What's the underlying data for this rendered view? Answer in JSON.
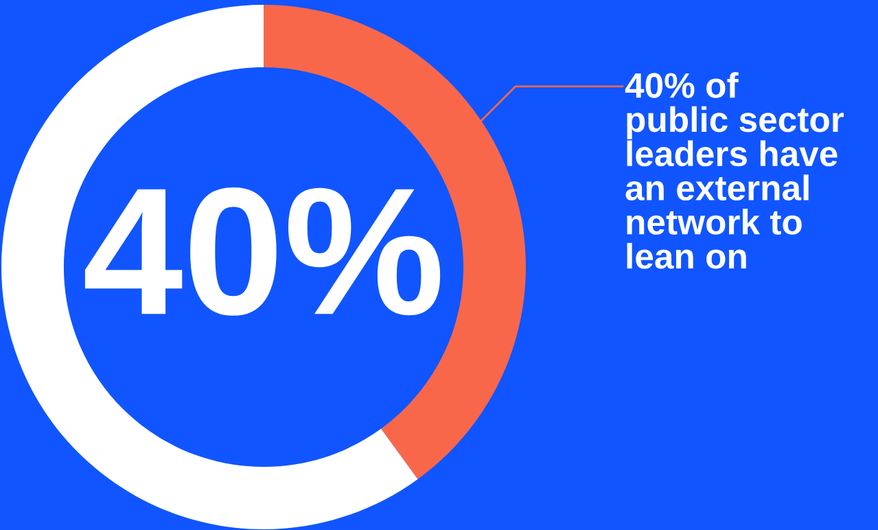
{
  "chart_data": {
    "type": "donut",
    "categories": [
      null,
      null
    ],
    "values": [
      40,
      60
    ],
    "colors": [
      "#f9674b",
      "#ffffff"
    ],
    "annotations": [
      "40%",
      "40% of\npublic sector\nleaders have\nan external\nnetwork to\nlean on"
    ],
    "legend": false
  }
}
